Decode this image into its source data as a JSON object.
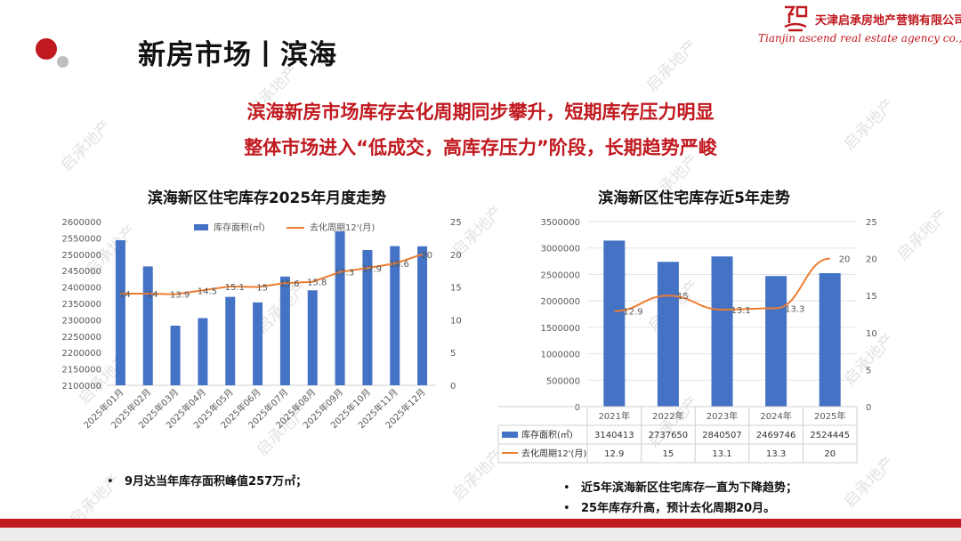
{
  "header": {
    "title": "新房市场丨滨海",
    "company_name": "天津启承房地产营销有限公司",
    "company_en": "Tianjin ascend real estate agency co., Ltd"
  },
  "headlines": [
    "滨海新房市场库存去化周期同步攀升，短期库存压力明显",
    "整体市场进入“低成交，高库存压力”阶段，长期趋势严峻"
  ],
  "watermark": "启承地产",
  "colors": {
    "accent": "#c0191f",
    "bar": "#4472c4",
    "line": "#ed7d31"
  },
  "chart_data": [
    {
      "type": "bar",
      "title": "滨海新区住宅库存2025年月度走势",
      "categories": [
        "2025年01月",
        "2025年02月",
        "2025年03月",
        "2025年04月",
        "2025年05月",
        "2025年06月",
        "2025年07月",
        "2025年08月",
        "2025年09月",
        "2025年10月",
        "2025年11月",
        "2025年12月"
      ],
      "series": [
        {
          "name": "库存面积(㎡)",
          "type": "bar",
          "axis": "left",
          "values": [
            2543000,
            2463000,
            2282000,
            2305000,
            2370000,
            2353000,
            2432000,
            2390000,
            2570000,
            2513000,
            2525000,
            2524445
          ]
        },
        {
          "name": "去化周期12'(月)",
          "type": "line",
          "axis": "right",
          "values": [
            14,
            14,
            13.9,
            14.5,
            15.1,
            15,
            15.6,
            15.8,
            17.3,
            17.9,
            18.6,
            20
          ],
          "labels": [
            "14",
            "14",
            "13.9",
            "14.5",
            "15.1",
            "15",
            "15.6",
            "15.8",
            "17.3",
            "17.9",
            "18.6",
            "20"
          ]
        }
      ],
      "ylim_left": [
        2100000,
        2600000
      ],
      "yticks_left": [
        "2100000",
        "2150000",
        "2200000",
        "2250000",
        "2300000",
        "2350000",
        "2400000",
        "2450000",
        "2500000",
        "2550000",
        "2600000"
      ],
      "ylim_right": [
        0,
        25
      ],
      "yticks_right": [
        "0",
        "5",
        "10",
        "15",
        "20",
        "25"
      ],
      "legend_position": "top-right",
      "grid": false
    },
    {
      "type": "bar",
      "title": "滨海新区住宅库存近5年走势",
      "categories": [
        "2021年",
        "2022年",
        "2023年",
        "2024年",
        "2025年"
      ],
      "series": [
        {
          "name": "库存面积(㎡)",
          "type": "bar",
          "axis": "left",
          "values": [
            3140413,
            2737650,
            2840507,
            2469746,
            2524445
          ],
          "labels": [
            "3140413",
            "2737650",
            "2840507",
            "2469746",
            "2524445"
          ]
        },
        {
          "name": "去化周期12'(月)",
          "type": "line",
          "axis": "right",
          "values": [
            12.9,
            15,
            13.1,
            13.3,
            20
          ],
          "labels": [
            "12.9",
            "15",
            "13.1",
            "13.3",
            "20"
          ],
          "point_labels": [
            "12.9",
            "15",
            "13.1",
            "13.3",
            "20"
          ]
        }
      ],
      "ylim_left": [
        0,
        3500000
      ],
      "yticks_left": [
        "0",
        "500000",
        "1000000",
        "1500000",
        "2000000",
        "2500000",
        "3000000",
        "3500000"
      ],
      "ylim_right": [
        0,
        25
      ],
      "yticks_right": [
        "0",
        "5",
        "10",
        "15",
        "20",
        "25"
      ],
      "legend_position": "data-table",
      "grid": true
    }
  ],
  "notes_left": [
    "9月达当年库存面积峰值257万㎡；"
  ],
  "notes_right": [
    "近5年滨海新区住宅库存一直为下降趋势；",
    "25年库存升高，预计去化周期20月。"
  ],
  "bullet": "•"
}
